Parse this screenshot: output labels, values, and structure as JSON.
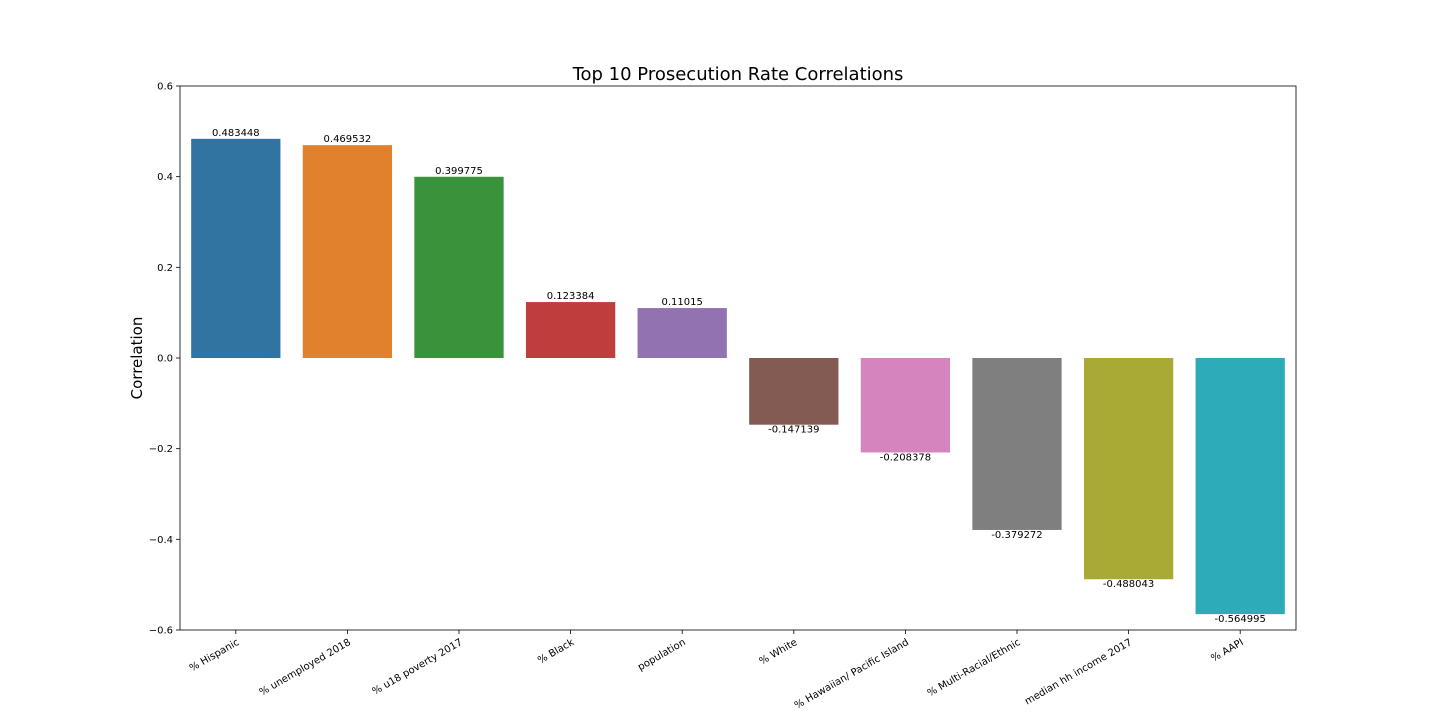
{
  "chart_data": {
    "type": "bar",
    "title": "Top 10 Prosecution Rate Correlations",
    "xlabel": "",
    "ylabel": "Correlation",
    "ylim": [
      -0.6,
      0.6
    ],
    "yticks": [
      0.6,
      0.4,
      0.2,
      0.0,
      -0.2,
      -0.4,
      -0.6
    ],
    "ytick_labels": [
      "0.6",
      "0.4",
      "0.2",
      "0.0",
      "−0.2",
      "−0.4",
      "−0.6"
    ],
    "categories": [
      "% Hispanic",
      "% unemployed 2018",
      "% u18 poverty 2017",
      "% Black",
      "population",
      "% White",
      "% Hawaiian/ Pacific Island",
      "% Multi-Racial/Ethnic",
      "median hh income 2017",
      "% AAPI"
    ],
    "values": [
      0.483448,
      0.469532,
      0.399775,
      0.123384,
      0.11015,
      -0.147139,
      -0.208378,
      -0.379272,
      -0.488043,
      -0.564995
    ],
    "value_labels": [
      "0.483448",
      "0.469532",
      "0.399775",
      "0.123384",
      "0.11015",
      "-0.147139",
      "-0.208378",
      "-0.379272",
      "-0.488043",
      "-0.564995"
    ],
    "colors": [
      "#3274a1",
      "#e1812c",
      "#3a923a",
      "#c03d3e",
      "#9372b2",
      "#845b53",
      "#d684bd",
      "#7f7f7f",
      "#a9aa35",
      "#2eabb8"
    ],
    "grid": false,
    "legend": "none"
  }
}
